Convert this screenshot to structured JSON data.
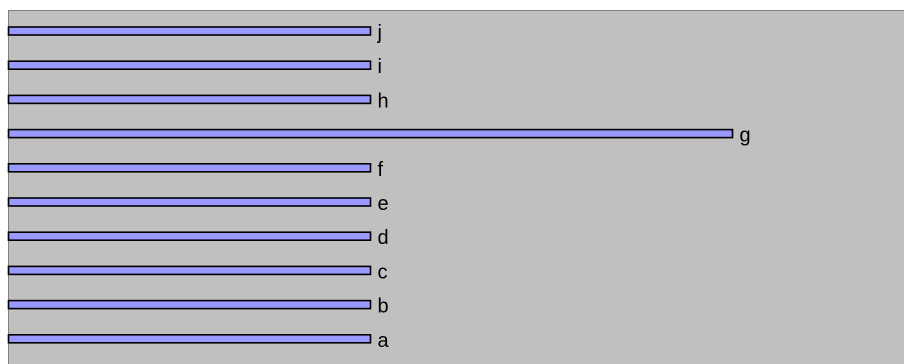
{
  "chart_data": {
    "type": "bar",
    "orientation": "horizontal",
    "categories": [
      "a",
      "b",
      "c",
      "d",
      "e",
      "f",
      "g",
      "h",
      "i",
      "j"
    ],
    "values": [
      1,
      1,
      1,
      1,
      1,
      1,
      2,
      1,
      1,
      1
    ],
    "xlim": [
      0,
      2.5
    ],
    "grid": false,
    "legend": "none"
  },
  "colors": {
    "plot_background": "#c0c0c0",
    "bar_fill": "#9999ff",
    "bar_stroke": "#000000",
    "axis_frame": "#808080"
  }
}
